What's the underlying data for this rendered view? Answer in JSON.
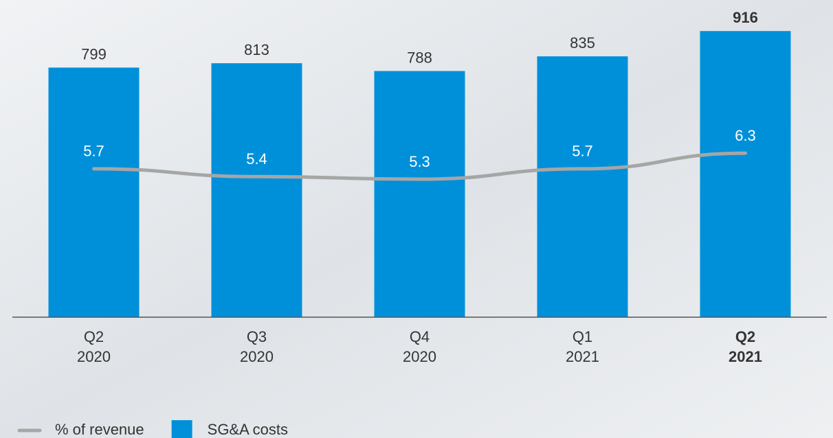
{
  "chart_data": {
    "type": "bar",
    "categories": [
      [
        "Q2",
        "2020"
      ],
      [
        "Q3",
        "2020"
      ],
      [
        "Q4",
        "2020"
      ],
      [
        "Q1",
        "2021"
      ],
      [
        "Q2",
        "2021"
      ]
    ],
    "series": [
      {
        "name": "SG&A costs",
        "type": "bar",
        "color": "#0090da",
        "values": [
          799,
          813,
          788,
          835,
          916
        ]
      },
      {
        "name": "% of revenue",
        "type": "line",
        "axis": "y2",
        "color": "#a6a6a6",
        "values": [
          5.7,
          5.4,
          5.3,
          5.7,
          6.3
        ]
      }
    ],
    "ylim": [
      0,
      1000
    ],
    "y2lim": [
      0,
      12
    ],
    "highlight_index": 4,
    "legend": "bottom-left"
  }
}
